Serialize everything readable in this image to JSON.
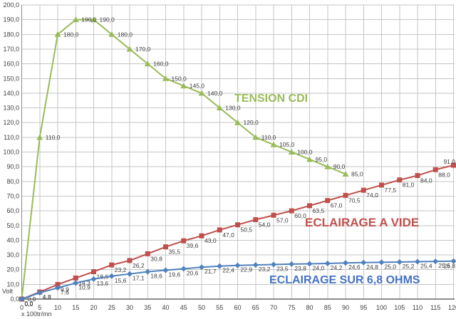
{
  "axes": {
    "x_title": "x 100tr/mn",
    "y_title": "Volt",
    "x_min": 0,
    "x_max": 120,
    "x_step": 5,
    "y_min": 0,
    "y_max": 200,
    "y_step": 10,
    "decimal_separator": ","
  },
  "colors": {
    "background": "#FFFFFF",
    "gridline": "#C6C6C6",
    "axis": "#8C8C8C",
    "tick_text": "#3F3F3F",
    "label_text": "#3C3C3C"
  },
  "chart_data": {
    "type": "line",
    "title": "",
    "xlabel": "x 100tr/mn",
    "ylabel": "Volt",
    "xlim": [
      0,
      120
    ],
    "ylim": [
      0,
      200
    ],
    "grid": "on",
    "legend_position": "floating-text-annotations",
    "series": [
      {
        "name": "TENSION CDI",
        "color": "#9BBB59",
        "marker": "triangle",
        "x": [
          0,
          5,
          10,
          15,
          20,
          25,
          30,
          35,
          40,
          45,
          50,
          55,
          60,
          65,
          70,
          75,
          80,
          85,
          90
        ],
        "values": [
          0.0,
          110.0,
          180.0,
          190.0,
          190.0,
          180.0,
          170.0,
          160.0,
          150.0,
          145.0,
          140.0,
          130.0,
          120.0,
          110.0,
          105.0,
          100.0,
          95.0,
          90.0,
          85.0
        ]
      },
      {
        "name": "ECLAIRAGE A VIDE",
        "color": "#C0504D",
        "marker": "square",
        "x": [
          0,
          5,
          10,
          15,
          20,
          25,
          30,
          35,
          40,
          45,
          50,
          55,
          60,
          65,
          70,
          75,
          80,
          85,
          90,
          95,
          100,
          105,
          110,
          115,
          120
        ],
        "values": [
          0.0,
          4.8,
          9.9,
          14.3,
          18.6,
          23.2,
          26.2,
          30.8,
          35.5,
          39.6,
          43.0,
          47.0,
          50.5,
          54.0,
          57.0,
          60.0,
          63.5,
          67.0,
          70.5,
          74.0,
          77.5,
          81.0,
          84.0,
          88.0,
          91.0
        ]
      },
      {
        "name": "ECLAIRAGE SUR 6,8 OHMS",
        "color": "#4F81BD",
        "marker": "diamond",
        "x": [
          0,
          5,
          10,
          15,
          20,
          25,
          30,
          35,
          40,
          45,
          50,
          55,
          60,
          65,
          70,
          75,
          80,
          85,
          90,
          95,
          100,
          105,
          110,
          115,
          120
        ],
        "values": [
          0.0,
          4.3,
          7.6,
          10.9,
          13.6,
          15.6,
          17.1,
          18.6,
          19.6,
          20.6,
          21.7,
          22.4,
          22.9,
          23.2,
          23.5,
          23.8,
          24.0,
          24.2,
          24.6,
          24.8,
          25.0,
          25.2,
          25.4,
          25.6,
          25.8
        ]
      }
    ],
    "annotations": [
      {
        "text": "TENSION CDI",
        "color": "#9BBB59"
      },
      {
        "text": "ECLAIRAGE A VIDE",
        "color": "#C0504D"
      },
      {
        "text": "ECLAIRAGE SUR 6,8 OHMS",
        "color": "#4472C4"
      }
    ]
  }
}
